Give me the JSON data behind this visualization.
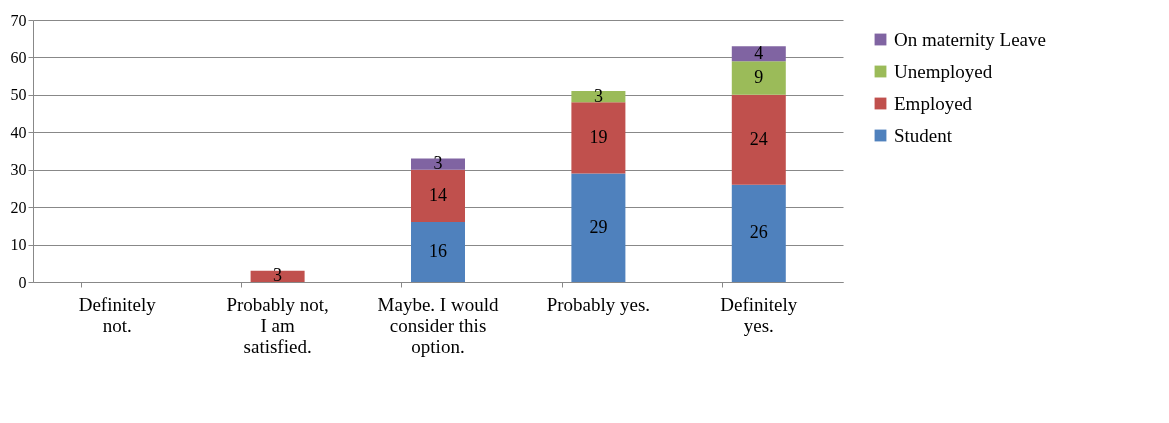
{
  "chart_data": {
    "type": "bar",
    "stacked": true,
    "categories": [
      "Definitely not.",
      "Probably not, I am satisfied.",
      "Maybe. I would consider this option.",
      "Probably yes.",
      "Definitely yes."
    ],
    "series": [
      {
        "name": "Student",
        "color": "#4f81bd",
        "values": [
          null,
          null,
          16,
          29,
          26
        ]
      },
      {
        "name": "Employed",
        "color": "#c0504d",
        "values": [
          null,
          3,
          14,
          19,
          24
        ]
      },
      {
        "name": "Unemployed",
        "color": "#9bbb59",
        "values": [
          null,
          null,
          null,
          3,
          9
        ]
      },
      {
        "name": "On maternity Leave",
        "color": "#8064a2",
        "values": [
          null,
          null,
          3,
          null,
          4
        ]
      }
    ],
    "ylim": [
      0,
      70
    ],
    "yticks": [
      0,
      10,
      20,
      30,
      40,
      50,
      60,
      70
    ],
    "grid": "y",
    "legend": "right",
    "data_labels": true
  }
}
